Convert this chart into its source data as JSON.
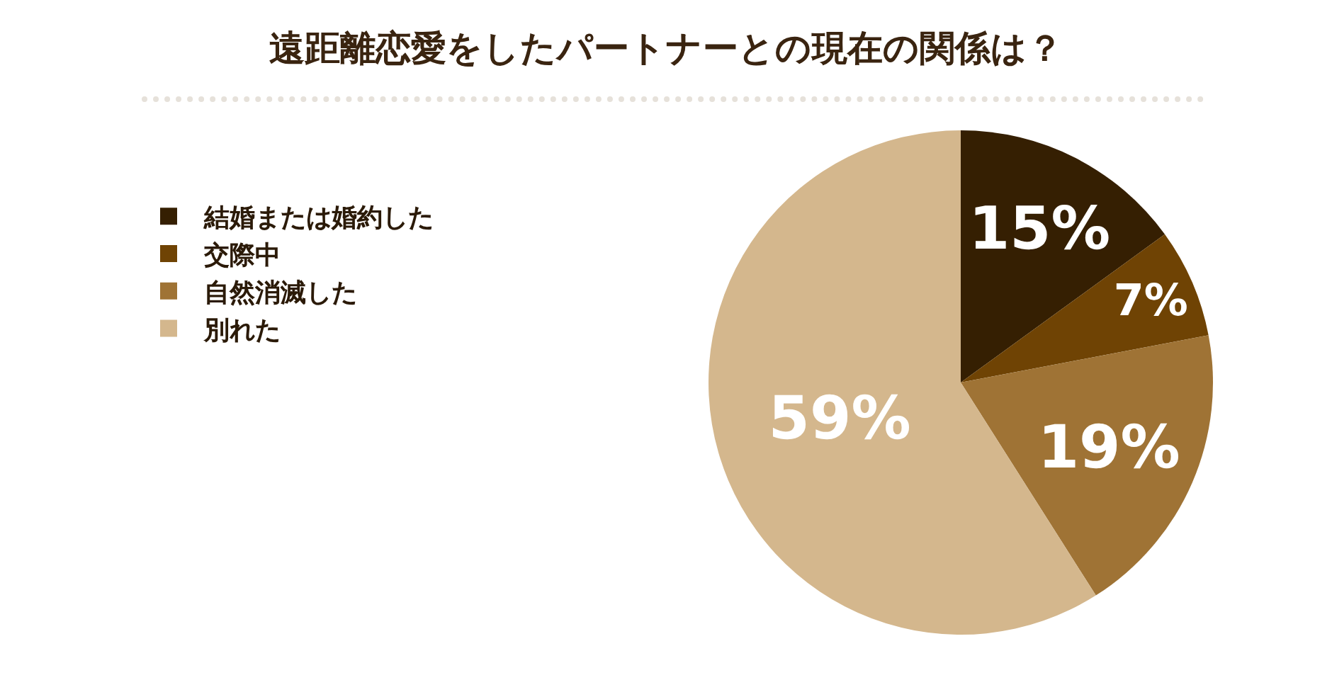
{
  "chart_data": {
    "type": "pie",
    "title": "遠距離恋愛をしたパートナーとの現在の関係は？",
    "categories": [
      "結婚または婚約した",
      "交際中",
      "自然消滅した",
      "別れた"
    ],
    "values": [
      15,
      7,
      19,
      59
    ],
    "colors": [
      "#351f02",
      "#6f4304",
      "#9f7335",
      "#d4b78d"
    ],
    "value_labels": [
      "15%",
      "7%",
      "19%",
      "59%"
    ],
    "legend": "left"
  }
}
